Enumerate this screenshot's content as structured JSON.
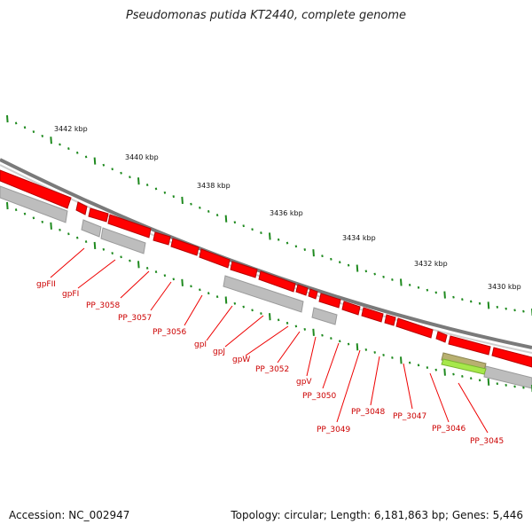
{
  "title": "Pseudomonas putida KT2440, complete genome",
  "footer": {
    "accession": "Accession: NC_002947",
    "topology": "Topology: circular; Length: 6,181,863 bp; Genes: 5,446"
  },
  "scale": {
    "kbp_labels": [
      "3442 kbp",
      "3440 kbp",
      "3438 kbp",
      "3436 kbp",
      "3434 kbp",
      "3432 kbp",
      "3430 kbp"
    ]
  },
  "gene_labels": [
    "gpFII",
    "gpFI",
    "PP_3058",
    "PP_3057",
    "PP_3056",
    "gpI",
    "gpJ",
    "gpW",
    "PP_3052",
    "gpV",
    "PP_3050",
    "PP_3049",
    "PP_3048",
    "PP_3047",
    "PP_3046",
    "PP_3045"
  ],
  "colors": {
    "gene": "#ff0000",
    "gene_dark": "#b80000",
    "grey_feature": "#bdbdbd",
    "backbone": "#7a7a7a",
    "tick_green": "#1f8a1f",
    "highlight_green": "#a6e84a",
    "highlight_olive": "#b8b070"
  }
}
